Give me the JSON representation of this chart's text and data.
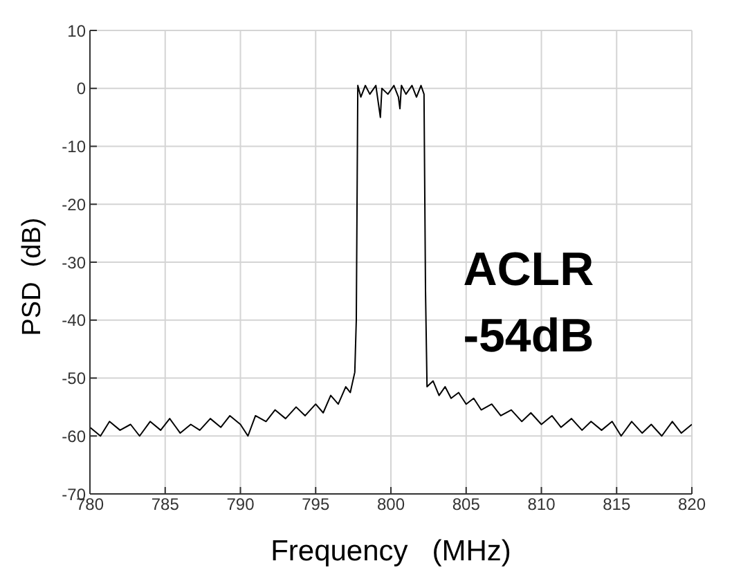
{
  "chart_data": {
    "type": "line",
    "xlabel": "Frequency   (MHz)",
    "ylabel": "PSD  (dB)",
    "annotations": [
      "ACLR\n-54dB"
    ],
    "x": [
      780,
      780.7,
      781.3,
      782,
      782.7,
      783.3,
      784,
      784.7,
      785.3,
      786,
      786.7,
      787.3,
      788,
      788.7,
      789.3,
      790,
      790.5,
      791,
      791.7,
      792.3,
      793,
      793.7,
      794.3,
      795,
      795.5,
      796,
      796.5,
      797,
      797.3,
      797.6,
      797.7,
      797.8,
      798,
      798.3,
      798.6,
      799,
      799.3,
      799.4,
      799.8,
      800.2,
      800.5,
      800.6,
      800.7,
      801,
      801.4,
      801.7,
      802,
      802.2,
      802.3,
      802.4,
      802.8,
      803.2,
      803.6,
      804,
      804.5,
      805,
      805.5,
      806,
      806.7,
      807.3,
      808,
      808.7,
      809.3,
      810,
      810.7,
      811.3,
      812,
      812.7,
      813.3,
      814,
      814.7,
      815.3,
      816,
      816.7,
      817.3,
      818,
      818.7,
      819.3,
      820
    ],
    "series": [
      {
        "color": "#000000",
        "values": [
          -58.5,
          -60,
          -57.5,
          -59,
          -58,
          -60,
          -57.5,
          -59,
          -57,
          -59.5,
          -58,
          -59,
          -57,
          -58.5,
          -56.5,
          -58,
          -60,
          -56.5,
          -57.5,
          -55.5,
          -57,
          -55,
          -56.5,
          -54.5,
          -56,
          -53,
          -54.5,
          -51.5,
          -52.5,
          -49,
          -40,
          0.5,
          -1.5,
          0.5,
          -1,
          0.5,
          -5,
          0,
          -1,
          0.5,
          -1.5,
          -3.5,
          0.5,
          -1,
          0.5,
          -1.5,
          0.5,
          -1,
          -35,
          -51.5,
          -50.5,
          -53,
          -51.5,
          -53.5,
          -52.5,
          -54.5,
          -53.5,
          -55.5,
          -54.5,
          -56.5,
          -55.5,
          -57.5,
          -56,
          -58,
          -56.5,
          -58.5,
          -57,
          -59,
          -57.5,
          -59,
          -57.5,
          -60,
          -57.5,
          -59.5,
          -58,
          -60,
          -57.5,
          -59.5,
          -58
        ]
      }
    ],
    "xlim": [
      780,
      820
    ],
    "xticks": [
      780,
      785,
      790,
      795,
      800,
      805,
      810,
      815,
      820
    ],
    "ylim": [
      -70,
      10
    ],
    "yticks": [
      -70,
      -60,
      -50,
      -40,
      -30,
      -20,
      -10,
      0,
      10
    ],
    "grid": true,
    "legend": false,
    "marker": "none",
    "line_style": "solid"
  }
}
